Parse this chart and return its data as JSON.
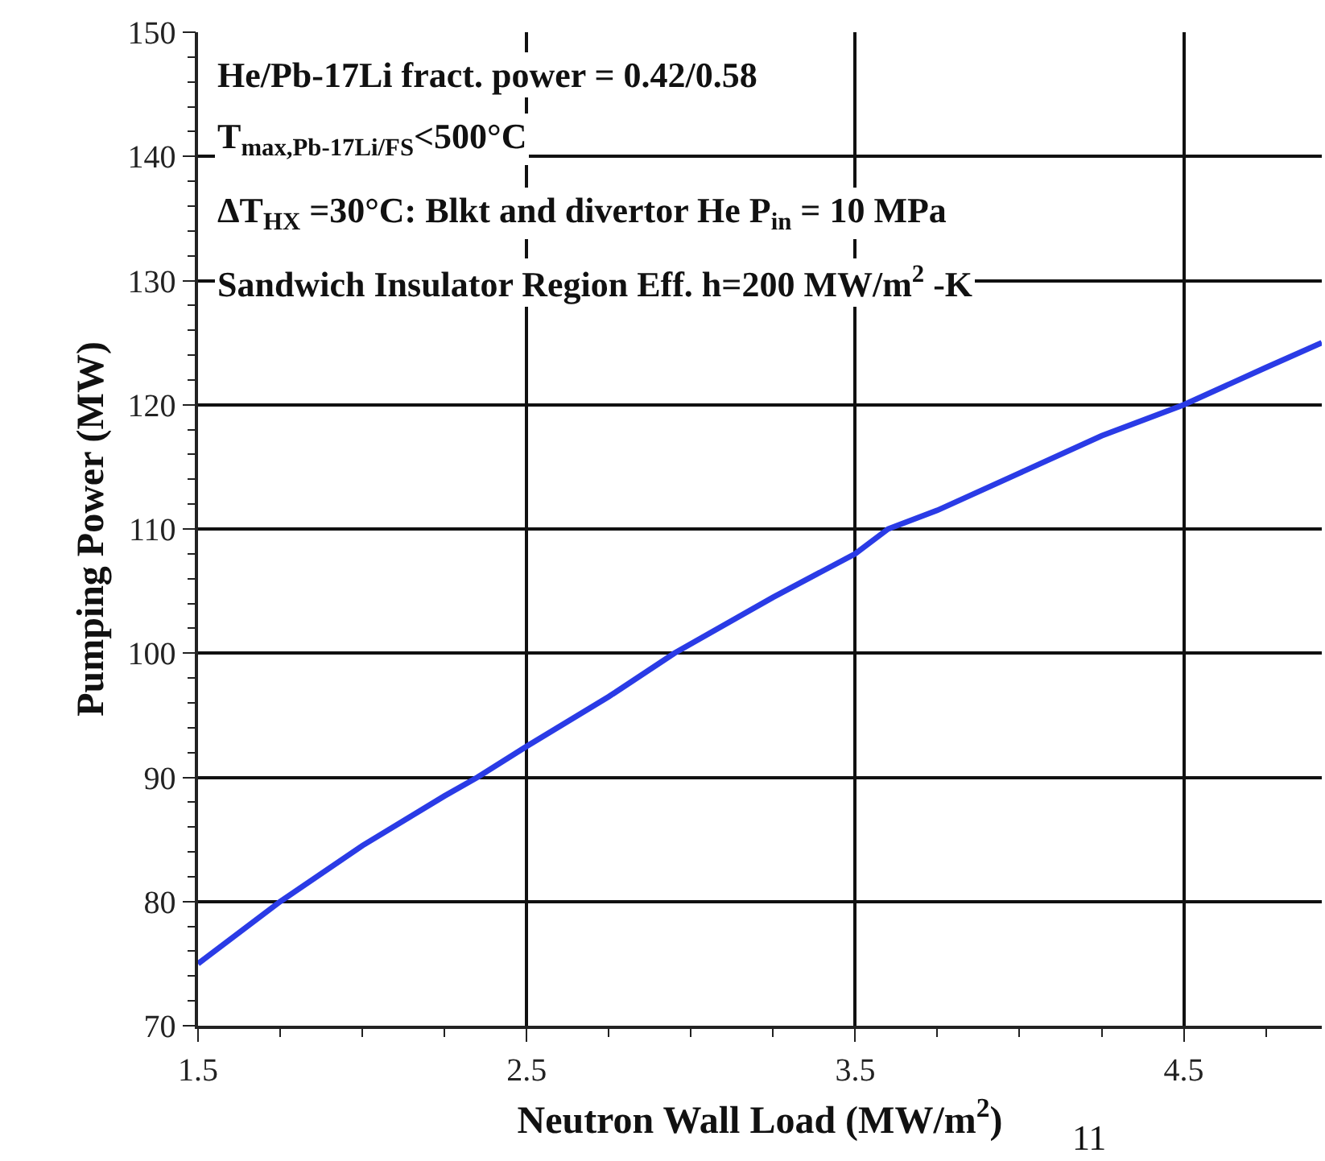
{
  "chart_data": {
    "type": "line",
    "xlabel": "Neutron Wall Load (MW/m$^{2}$)",
    "ylabel": "Pumping Power (MW)",
    "annotations": [
      "He/Pb-17Li fract. power = 0.42/0.58",
      "T$_{max,Pb-17Li/FS}$<500°C",
      "ΔT$_{HX}$ =30°C: Blkt and divertor He P$_{in}$ = 10 MPa",
      "Sandwich Insulator Region Eff. h=200 MW/m$^{2}$ -K",
      "11"
    ],
    "x": [
      1.5,
      1.75,
      2.0,
      2.25,
      2.35,
      2.5,
      2.75,
      2.95,
      3.25,
      3.5,
      3.6,
      3.75,
      4.0,
      4.25,
      4.5,
      4.75,
      4.92
    ],
    "series": [
      {
        "color": "#2a3be6",
        "values": [
          75,
          80,
          84.5,
          88.5,
          90,
          92.5,
          96.5,
          100,
          104.5,
          108,
          110,
          111.5,
          114.5,
          117.5,
          120,
          123,
          125
        ]
      }
    ],
    "xlim": [
      1.5,
      4.92
    ],
    "xticks": [
      1.5,
      2.5,
      3.5,
      4.5
    ],
    "ylim": [
      70,
      150
    ],
    "yticks": [
      70,
      80,
      90,
      100,
      110,
      120,
      130,
      140,
      150
    ],
    "grid": true,
    "line_style": "solid",
    "marker": "none"
  }
}
